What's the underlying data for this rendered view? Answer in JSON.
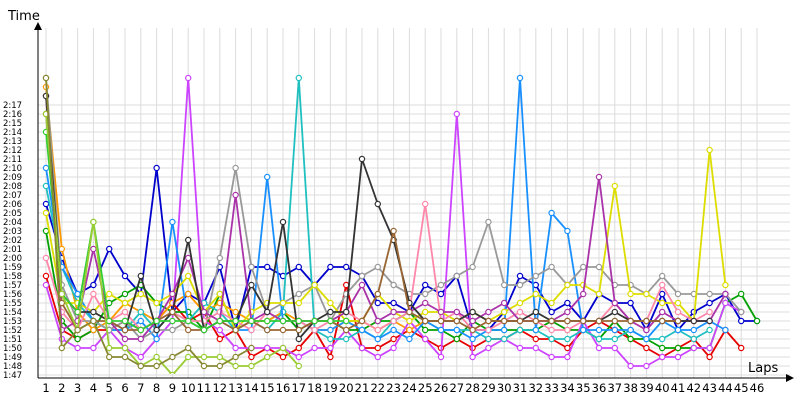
{
  "chart_data": {
    "type": "line",
    "ylabel": "Time",
    "xlabel": "Laps",
    "x": [
      1,
      2,
      3,
      4,
      5,
      6,
      7,
      8,
      9,
      10,
      11,
      12,
      13,
      14,
      15,
      16,
      17,
      18,
      19,
      20,
      21,
      22,
      23,
      24,
      25,
      26,
      27,
      28,
      29,
      30,
      31,
      32,
      33,
      34,
      35,
      36,
      37,
      38,
      39,
      40,
      41,
      42,
      43,
      44,
      45,
      46
    ],
    "ytick_labels": [
      "1:47",
      "1:48",
      "1:49",
      "1:50",
      "1:51",
      "1:52",
      "1:53",
      "1:54",
      "1:55",
      "1:56",
      "1:57",
      "1:58",
      "1:59",
      "2:00",
      "2:01",
      "2:02",
      "2:03",
      "2:04",
      "2:05",
      "2:06",
      "2:07",
      "2:08",
      "2:09",
      "2:10",
      "2:11",
      "2:12",
      "2:13",
      "2:14",
      "2:15",
      "2:16",
      "2:17"
    ],
    "ylim_seconds": [
      106,
      140
    ],
    "grid": true,
    "legend": "none",
    "series": [
      {
        "color": "#0000cc",
        "values": [
          126,
          120,
          116,
          117,
          121,
          118,
          116,
          130,
          114,
          116,
          115,
          119,
          112,
          119,
          119,
          118,
          119,
          117,
          119,
          119,
          118,
          115,
          115,
          114,
          117,
          116,
          118,
          112,
          112,
          114,
          118,
          117,
          114,
          115,
          113,
          116,
          115,
          115,
          112,
          116,
          112,
          114,
          115,
          116,
          113,
          113
        ]
      },
      {
        "color": "#e60000",
        "values": [
          118,
          112,
          111,
          112,
          112,
          113,
          112,
          113,
          115,
          113,
          114,
          111,
          112,
          109,
          110,
          109,
          110,
          112,
          109,
          117,
          110,
          110,
          111,
          112,
          111,
          110,
          111,
          110,
          111,
          111,
          112,
          111,
          111,
          110,
          112,
          113,
          112,
          111,
          110,
          109,
          110,
          111,
          109,
          112,
          110,
          null
        ]
      },
      {
        "color": "#00a000",
        "values": [
          123,
          113,
          111,
          112,
          115,
          116,
          117,
          115,
          114,
          114,
          112,
          116,
          112,
          113,
          113,
          114,
          112,
          113,
          113,
          112,
          112,
          113,
          113,
          114,
          112,
          112,
          111,
          113,
          112,
          112,
          112,
          112,
          113,
          112,
          112,
          111,
          113,
          111,
          111,
          110,
          110,
          110,
          110,
          115,
          116,
          113
        ]
      },
      {
        "color": "#ff9900",
        "values": [
          139,
          121,
          114,
          112,
          113,
          115,
          114,
          113,
          115,
          116,
          114,
          115,
          114,
          113,
          113,
          114,
          113,
          112,
          112,
          113,
          113,
          112,
          113,
          112,
          113,
          null,
          null,
          null,
          null,
          null,
          null,
          null,
          null,
          null,
          null,
          null,
          null,
          null,
          null,
          null,
          null,
          null,
          null,
          null,
          null,
          null
        ]
      },
      {
        "color": "#cc44ff",
        "values": [
          117,
          111,
          110,
          110,
          112,
          110,
          109,
          111,
          113,
          140,
          113,
          112,
          110,
          110,
          110,
          110,
          109,
          110,
          110,
          112,
          110,
          109,
          110,
          113,
          111,
          109,
          136,
          109,
          110,
          111,
          110,
          110,
          109,
          109,
          113,
          110,
          110,
          108,
          108,
          109,
          109,
          110,
          110,
          115,
          114,
          null
        ]
      },
      {
        "color": "#20c0c0",
        "values": [
          128,
          119,
          115,
          113,
          112,
          112,
          114,
          112,
          114,
          113,
          115,
          114,
          112,
          113,
          112,
          114,
          140,
          112,
          111,
          111,
          112,
          111,
          113,
          114,
          113,
          112,
          112,
          112,
          111,
          111,
          112,
          112,
          111,
          111,
          112,
          111,
          111,
          112,
          111,
          111,
          112,
          111,
          112,
          null,
          null,
          null
        ]
      },
      {
        "color": "#1a90ff",
        "values": [
          130,
          119,
          116,
          113,
          112,
          112,
          113,
          111,
          124,
          113,
          112,
          113,
          112,
          112,
          129,
          113,
          113,
          112,
          112,
          113,
          112,
          111,
          112,
          111,
          113,
          112,
          112,
          111,
          112,
          112,
          140,
          112,
          125,
          123,
          112,
          112,
          112,
          112,
          111,
          113,
          112,
          112,
          113,
          112,
          null,
          null
        ]
      },
      {
        "color": "#999999",
        "values": [
          140,
          117,
          113,
          113,
          112,
          113,
          111,
          112,
          112,
          113,
          112,
          120,
          130,
          119,
          114,
          115,
          116,
          117,
          113,
          116,
          118,
          119,
          117,
          116,
          116,
          117,
          118,
          119,
          124,
          117,
          117,
          118,
          119,
          117,
          119,
          119,
          117,
          117,
          116,
          118,
          116,
          116,
          116,
          116,
          114,
          null
        ]
      },
      {
        "color": "#dddd00",
        "values": [
          125,
          115,
          115,
          114,
          116,
          115,
          116,
          115,
          116,
          118,
          114,
          116,
          112,
          114,
          115,
          115,
          115,
          117,
          115,
          113,
          113,
          116,
          114,
          113,
          114,
          114,
          113,
          114,
          113,
          114,
          115,
          116,
          115,
          117,
          117,
          116,
          128,
          116,
          116,
          115,
          115,
          113,
          132,
          117,
          null,
          null
        ]
      },
      {
        "color": "#ff88aa",
        "values": [
          120,
          114,
          112,
          116,
          113,
          114,
          112,
          113,
          114,
          113,
          113,
          114,
          113,
          112,
          114,
          113,
          113,
          112,
          113,
          114,
          113,
          112,
          113,
          114,
          126,
          113,
          114,
          112,
          112,
          113,
          114,
          113,
          112,
          112,
          113,
          113,
          115,
          113,
          113,
          117,
          114,
          113,
          114,
          null,
          null,
          null
        ]
      },
      {
        "color": "#aa33aa",
        "values": [
          138,
          112,
          113,
          121,
          113,
          111,
          111,
          113,
          116,
          120,
          114,
          113,
          127,
          113,
          114,
          113,
          113,
          113,
          113,
          114,
          117,
          113,
          114,
          114,
          115,
          114,
          114,
          113,
          114,
          115,
          113,
          113,
          113,
          114,
          116,
          129,
          115,
          113,
          112,
          114,
          113,
          113,
          113,
          116,
          null,
          null
        ]
      },
      {
        "color": "#333333",
        "values": [
          138,
          116,
          114,
          114,
          113,
          112,
          118,
          112,
          114,
          122,
          112,
          113,
          113,
          117,
          114,
          124,
          111,
          113,
          114,
          114,
          131,
          126,
          122,
          115,
          113,
          113,
          113,
          114,
          113,
          113,
          113,
          114,
          113,
          113,
          113,
          113,
          114,
          113,
          113,
          113,
          113,
          113,
          113,
          null,
          null,
          null
        ]
      },
      {
        "color": "#996633",
        "values": [
          136,
          115,
          112,
          113,
          113,
          112,
          112,
          113,
          114,
          112,
          112,
          113,
          112,
          113,
          112,
          112,
          112,
          113,
          113,
          112,
          113,
          116,
          123,
          114,
          113,
          113,
          113,
          112,
          113,
          113,
          113,
          113,
          113,
          113,
          113,
          113,
          113,
          113,
          113,
          113,
          113,
          null,
          null,
          null,
          null,
          null
        ]
      },
      {
        "color": "#33cc33",
        "values": [
          134,
          116,
          114,
          124,
          113,
          113,
          112,
          113,
          113,
          113,
          112,
          113,
          113,
          113,
          113,
          113,
          113,
          113,
          113,
          113,
          null,
          null,
          null,
          null,
          null,
          null,
          null,
          null,
          null,
          null,
          null,
          null,
          null,
          null,
          null,
          null,
          null,
          null,
          null,
          null,
          null,
          null,
          null,
          null,
          null,
          null
        ]
      },
      {
        "color": "#99cc33",
        "values": [
          136,
          116,
          112,
          124,
          110,
          110,
          108,
          109,
          107,
          109,
          109,
          109,
          108,
          108,
          109,
          110,
          108,
          null,
          null,
          null,
          null,
          null,
          null,
          null,
          null,
          null,
          null,
          null,
          null,
          null,
          null,
          null,
          null,
          null,
          null,
          null,
          null,
          null,
          null,
          null,
          null,
          null,
          null,
          null,
          null,
          null
        ]
      },
      {
        "color": "#888833",
        "values": [
          140,
          110,
          112,
          113,
          109,
          109,
          108,
          108,
          109,
          110,
          108,
          108,
          109,
          110,
          null,
          null,
          null,
          null,
          null,
          null,
          null,
          null,
          null,
          null,
          null,
          null,
          null,
          null,
          null,
          null,
          null,
          null,
          null,
          null,
          null,
          null,
          null,
          null,
          null,
          null,
          null,
          null,
          null,
          null,
          null,
          null
        ]
      }
    ]
  },
  "colors": {
    "grid": "#dcdcdc",
    "axis": "#000000",
    "plot_bg": "#ffffff"
  }
}
